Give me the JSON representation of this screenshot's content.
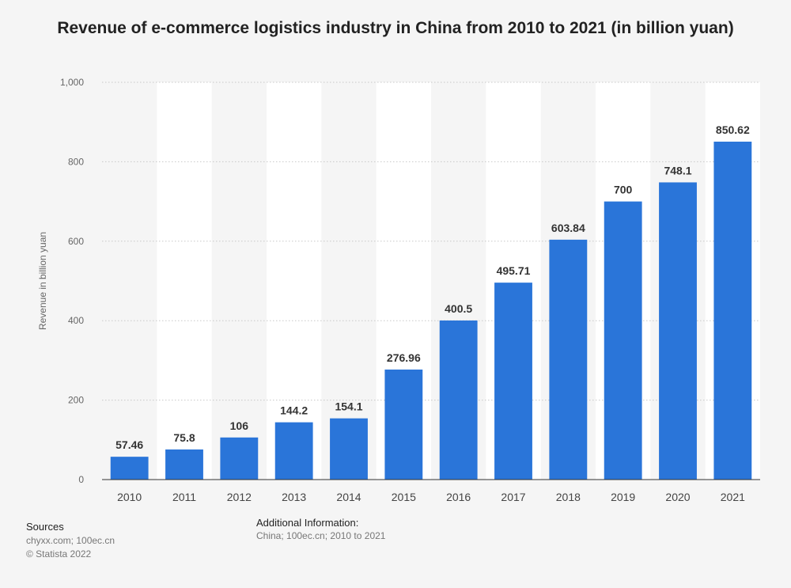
{
  "chart_data": {
    "type": "bar",
    "title": "Revenue of e-commerce logistics industry in China from 2010 to 2021 (in billion yuan)",
    "xlabel": "",
    "ylabel": "Revenue in billion yuan",
    "categories": [
      "2010",
      "2011",
      "2012",
      "2013",
      "2014",
      "2015",
      "2016",
      "2017",
      "2018",
      "2019",
      "2020",
      "2021"
    ],
    "values": [
      57.46,
      75.8,
      106,
      144.2,
      154.1,
      276.96,
      400.5,
      495.71,
      603.84,
      700,
      748.1,
      850.62
    ],
    "value_labels": [
      "57.46",
      "75.8",
      "106",
      "144.2",
      "154.1",
      "276.96",
      "400.5",
      "495.71",
      "603.84",
      "700",
      "748.1",
      "850.62"
    ],
    "ylim": [
      0,
      1000
    ],
    "yticks": [
      0,
      200,
      400,
      600,
      800,
      1000
    ],
    "ytick_labels": [
      "0",
      "200",
      "400",
      "600",
      "800",
      "1,000"
    ],
    "grid": true,
    "bar_color": "#2a75d9"
  },
  "footer": {
    "sources_heading": "Sources",
    "sources_text": "chyxx.com; 100ec.cn",
    "copyright": "© Statista 2022",
    "info_heading": "Additional Information:",
    "info_text": "China; 100ec.cn; 2010 to 2021"
  }
}
